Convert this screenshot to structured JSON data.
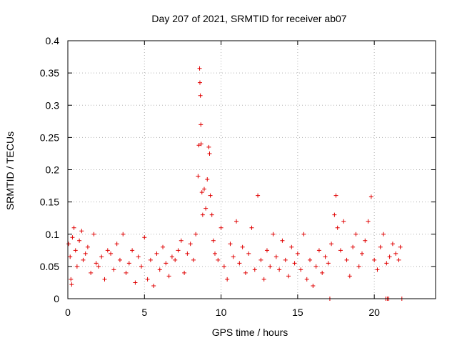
{
  "chart_data": {
    "type": "scatter",
    "title": "Day 207 of 2021, SRMTID for receiver ab07",
    "xlabel": "GPS time / hours",
    "ylabel": "SRMTID / TECUs",
    "xlim": [
      0,
      24
    ],
    "ylim": [
      0,
      0.4
    ],
    "grid": true,
    "legend": "none",
    "marker": "+",
    "color": "#e00000",
    "xticks": [
      "0",
      "5",
      "10",
      "15",
      "20"
    ],
    "yticks": [
      "0",
      "0.05",
      "0.1",
      "0.15",
      "0.2",
      "0.25",
      "0.3",
      "0.35",
      "0.4"
    ],
    "xtick_values": [
      0,
      5,
      10,
      15,
      20
    ],
    "ytick_values": [
      0,
      0.05,
      0.1,
      0.15,
      0.2,
      0.25,
      0.3,
      0.35,
      0.4
    ],
    "series": [
      {
        "name": "SRMTID",
        "points": [
          [
            0.05,
            0.085
          ],
          [
            0.15,
            0.065
          ],
          [
            0.2,
            0.03
          ],
          [
            0.25,
            0.022
          ],
          [
            0.3,
            0.095
          ],
          [
            0.4,
            0.11
          ],
          [
            0.5,
            0.075
          ],
          [
            0.6,
            0.05
          ],
          [
            0.75,
            0.09
          ],
          [
            0.9,
            0.105
          ],
          [
            1.0,
            0.06
          ],
          [
            1.15,
            0.07
          ],
          [
            1.3,
            0.08
          ],
          [
            1.5,
            0.04
          ],
          [
            1.7,
            0.1
          ],
          [
            1.85,
            0.055
          ],
          [
            2.0,
            0.05
          ],
          [
            2.2,
            0.065
          ],
          [
            2.4,
            0.03
          ],
          [
            2.6,
            0.075
          ],
          [
            2.8,
            0.07
          ],
          [
            3.0,
            0.045
          ],
          [
            3.2,
            0.085
          ],
          [
            3.4,
            0.06
          ],
          [
            3.6,
            0.1
          ],
          [
            3.8,
            0.04
          ],
          [
            4.0,
            0.055
          ],
          [
            4.2,
            0.075
          ],
          [
            4.4,
            0.025
          ],
          [
            4.6,
            0.065
          ],
          [
            4.8,
            0.05
          ],
          [
            5.0,
            0.095
          ],
          [
            5.2,
            0.03
          ],
          [
            5.4,
            0.06
          ],
          [
            5.6,
            0.02
          ],
          [
            5.8,
            0.07
          ],
          [
            6.0,
            0.045
          ],
          [
            6.2,
            0.08
          ],
          [
            6.4,
            0.055
          ],
          [
            6.6,
            0.035
          ],
          [
            6.8,
            0.065
          ],
          [
            7.0,
            0.06
          ],
          [
            7.2,
            0.075
          ],
          [
            7.4,
            0.09
          ],
          [
            7.6,
            0.04
          ],
          [
            7.8,
            0.07
          ],
          [
            8.0,
            0.085
          ],
          [
            8.2,
            0.06
          ],
          [
            8.35,
            0.1
          ],
          [
            8.5,
            0.19
          ],
          [
            8.55,
            0.238
          ],
          [
            8.6,
            0.357
          ],
          [
            8.62,
            0.335
          ],
          [
            8.65,
            0.315
          ],
          [
            8.68,
            0.27
          ],
          [
            8.7,
            0.24
          ],
          [
            8.75,
            0.165
          ],
          [
            8.8,
            0.13
          ],
          [
            8.9,
            0.17
          ],
          [
            9.0,
            0.14
          ],
          [
            9.1,
            0.185
          ],
          [
            9.2,
            0.235
          ],
          [
            9.25,
            0.225
          ],
          [
            9.3,
            0.16
          ],
          [
            9.4,
            0.13
          ],
          [
            9.5,
            0.09
          ],
          [
            9.6,
            0.07
          ],
          [
            9.8,
            0.06
          ],
          [
            10.0,
            0.11
          ],
          [
            10.2,
            0.05
          ],
          [
            10.4,
            0.03
          ],
          [
            10.6,
            0.085
          ],
          [
            10.8,
            0.065
          ],
          [
            11.0,
            0.12
          ],
          [
            11.2,
            0.055
          ],
          [
            11.4,
            0.08
          ],
          [
            11.6,
            0.04
          ],
          [
            11.8,
            0.07
          ],
          [
            12.0,
            0.11
          ],
          [
            12.2,
            0.045
          ],
          [
            12.4,
            0.16
          ],
          [
            12.6,
            0.06
          ],
          [
            12.8,
            0.03
          ],
          [
            13.0,
            0.075
          ],
          [
            13.2,
            0.05
          ],
          [
            13.4,
            0.1
          ],
          [
            13.6,
            0.065
          ],
          [
            13.8,
            0.045
          ],
          [
            14.0,
            0.09
          ],
          [
            14.2,
            0.06
          ],
          [
            14.4,
            0.035
          ],
          [
            14.6,
            0.08
          ],
          [
            14.8,
            0.055
          ],
          [
            15.0,
            0.07
          ],
          [
            15.2,
            0.045
          ],
          [
            15.4,
            0.1
          ],
          [
            15.6,
            0.03
          ],
          [
            15.8,
            0.06
          ],
          [
            16.0,
            0.02
          ],
          [
            16.2,
            0.05
          ],
          [
            16.4,
            0.075
          ],
          [
            16.6,
            0.04
          ],
          [
            16.8,
            0.065
          ],
          [
            17.0,
            0.055
          ],
          [
            17.2,
            0.085
          ],
          [
            17.4,
            0.13
          ],
          [
            17.5,
            0.16
          ],
          [
            17.6,
            0.11
          ],
          [
            17.8,
            0.075
          ],
          [
            18.0,
            0.12
          ],
          [
            18.2,
            0.06
          ],
          [
            18.4,
            0.035
          ],
          [
            18.6,
            0.08
          ],
          [
            18.8,
            0.1
          ],
          [
            19.0,
            0.05
          ],
          [
            19.2,
            0.07
          ],
          [
            19.4,
            0.09
          ],
          [
            19.6,
            0.12
          ],
          [
            19.8,
            0.158
          ],
          [
            20.0,
            0.06
          ],
          [
            20.2,
            0.045
          ],
          [
            20.4,
            0.08
          ],
          [
            20.6,
            0.1
          ],
          [
            20.8,
            0.055
          ],
          [
            21.0,
            0.065
          ],
          [
            21.2,
            0.085
          ],
          [
            21.4,
            0.07
          ],
          [
            21.6,
            0.06
          ],
          [
            21.7,
            0.08
          ],
          [
            17.1,
            0.0
          ],
          [
            20.75,
            0.0
          ],
          [
            20.85,
            0.0
          ],
          [
            20.95,
            0.0
          ],
          [
            21.8,
            0.0
          ]
        ]
      }
    ]
  }
}
